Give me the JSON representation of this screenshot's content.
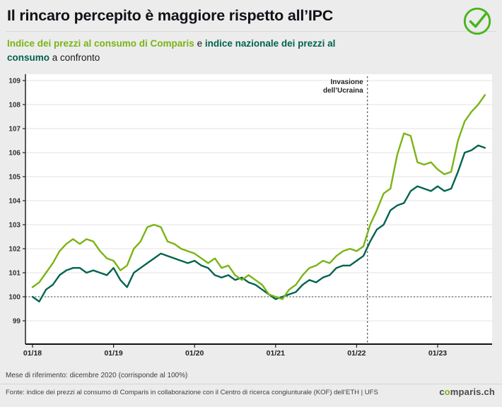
{
  "header": {
    "title": "Il rincaro percepito è maggiore rispetto all’IPC"
  },
  "subtitle": {
    "l1_green": "Indice dei prezzi al consumo di Comparis",
    "l1_mid": " e ",
    "l1_dark": "indice nazionale dei prezzi al",
    "l2_dark": "consumo",
    "l2_rest": " a confronto"
  },
  "colors": {
    "comparis_green": "#7ab414",
    "national_dark_green": "#00634e",
    "badge_green": "#47b51c",
    "background": "#ececec"
  },
  "chart_data": {
    "type": "line",
    "title": "",
    "ylim": [
      99,
      109
    ],
    "y_ticks": [
      99,
      100,
      101,
      102,
      103,
      104,
      105,
      106,
      107,
      108,
      109
    ],
    "reference_line_y": 100,
    "grid": true,
    "legend_position": "none",
    "x_ticks": [
      {
        "label": "01/18",
        "month_index": 0
      },
      {
        "label": "01/19",
        "month_index": 12
      },
      {
        "label": "01/20",
        "month_index": 24
      },
      {
        "label": "01/21",
        "month_index": 36
      },
      {
        "label": "01/22",
        "month_index": 48
      },
      {
        "label": "01/23",
        "month_index": 60
      }
    ],
    "annotation": {
      "text_lines": [
        "Invasione",
        "dell’Ucraina"
      ],
      "month_index": 49.6
    },
    "series": [
      {
        "name": "Indice dei prezzi al consumo di Comparis",
        "color": "#7ab414",
        "values": [
          100.4,
          100.6,
          101.0,
          101.4,
          101.9,
          102.2,
          102.4,
          102.2,
          102.4,
          102.3,
          101.9,
          101.6,
          101.5,
          101.1,
          101.3,
          102.0,
          102.3,
          102.9,
          103.0,
          102.9,
          102.3,
          102.2,
          102.0,
          101.9,
          101.8,
          101.6,
          101.4,
          101.6,
          101.2,
          101.3,
          100.9,
          100.7,
          100.9,
          100.7,
          100.5,
          100.1,
          100.0,
          99.9,
          100.3,
          100.5,
          100.9,
          101.2,
          101.3,
          101.5,
          101.4,
          101.7,
          101.9,
          102.0,
          101.9,
          102.1,
          103.0,
          103.6,
          104.3,
          104.5,
          105.9,
          106.8,
          106.7,
          105.6,
          105.5,
          105.6,
          105.3,
          105.1,
          105.2,
          106.5,
          107.3,
          107.7,
          108.0,
          108.4
        ]
      },
      {
        "name": "Indice nazionale dei prezzi al consumo",
        "color": "#00634e",
        "values": [
          100.0,
          99.8,
          100.3,
          100.5,
          100.9,
          101.1,
          101.2,
          101.2,
          101.0,
          101.1,
          101.0,
          100.9,
          101.2,
          100.7,
          100.4,
          101.0,
          101.2,
          101.4,
          101.6,
          101.8,
          101.7,
          101.6,
          101.5,
          101.4,
          101.5,
          101.3,
          101.2,
          100.9,
          100.8,
          100.9,
          100.7,
          100.8,
          100.6,
          100.5,
          100.3,
          100.1,
          99.9,
          100.0,
          100.1,
          100.2,
          100.5,
          100.7,
          100.6,
          100.8,
          100.9,
          101.2,
          101.3,
          101.3,
          101.5,
          101.7,
          102.3,
          102.8,
          103.0,
          103.6,
          103.8,
          103.9,
          104.4,
          104.6,
          104.5,
          104.4,
          104.6,
          104.4,
          104.5,
          105.2,
          106.0,
          106.1,
          106.3,
          106.2
        ]
      }
    ]
  },
  "footer": {
    "note": "Mese di riferimento: dicembre 2020 (corrisponde al 100%)",
    "source": "Fonte: indice dei prezzi al consumo di Comparis in collaborazione con il Centro di ricerca congiunturale (KOF) dell’ETH | UFS",
    "logo_c": "c",
    "logo_o": "o",
    "logo_rest": "mparis.ch"
  }
}
